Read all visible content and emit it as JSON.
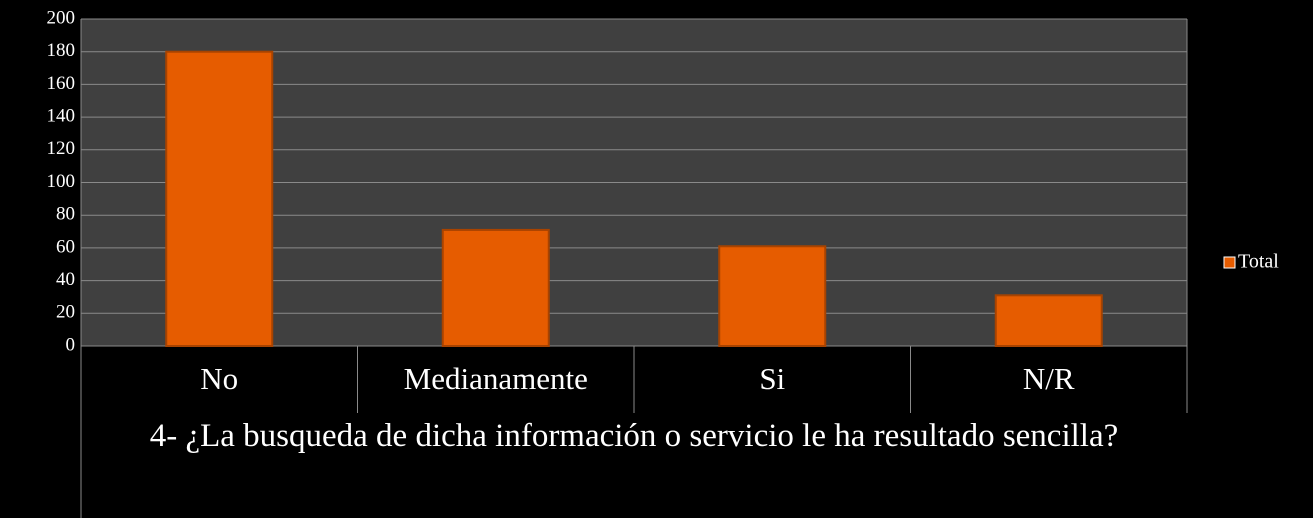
{
  "chart_data": {
    "type": "bar",
    "xlabel": "4- ¿La busqueda de dicha información o servicio le ha resultado sencilla?",
    "categories": [
      "No",
      "Medianamente",
      "Si",
      "N/R"
    ],
    "values": [
      180,
      71,
      61,
      31
    ],
    "series_name": "Total",
    "color": "#e65c00",
    "ylim": [
      0,
      200
    ],
    "yticks": [
      0,
      20,
      40,
      60,
      80,
      100,
      120,
      140,
      160,
      180,
      200
    ],
    "grid": true,
    "legend": "right"
  }
}
